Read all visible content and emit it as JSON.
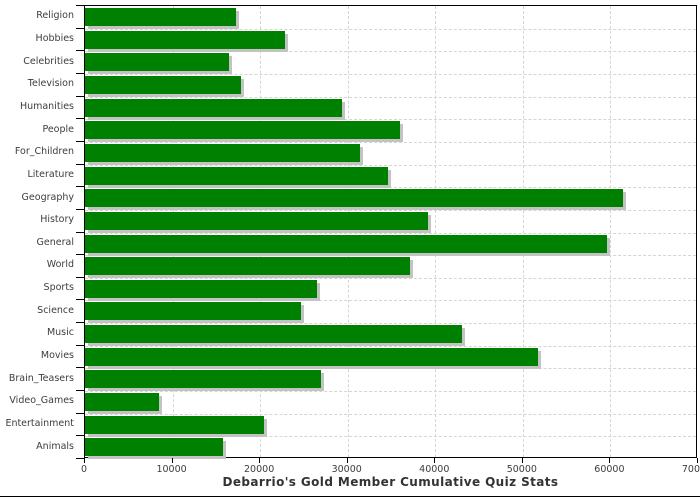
{
  "chart_data": {
    "type": "bar",
    "orientation": "horizontal",
    "title": "Debarrio's Gold Member Cumulative Quiz Stats",
    "xlabel": "",
    "ylabel": "",
    "categories": [
      "Religion",
      "Hobbies",
      "Celebrities",
      "Television",
      "Humanities",
      "People",
      "For_Children",
      "Literature",
      "Geography",
      "History",
      "General",
      "World",
      "Sports",
      "Science",
      "Music",
      "Movies",
      "Brain_Teasers",
      "Video_Games",
      "Entertainment",
      "Animals"
    ],
    "values": [
      17300,
      22800,
      16400,
      17800,
      29400,
      36000,
      31400,
      34600,
      61400,
      39200,
      59600,
      37100,
      26500,
      24700,
      43100,
      51700,
      27000,
      8400,
      20400,
      15800
    ],
    "xlim": [
      0,
      70000
    ],
    "xticks": [
      0,
      10000,
      20000,
      30000,
      40000,
      50000,
      60000,
      70000
    ],
    "xtick_labels": [
      "0",
      "10000",
      "20000",
      "30000",
      "40000",
      "50000",
      "60000",
      "70000"
    ],
    "grid": "dashed vertical lines every 10000, dashed horizontal lines between categories",
    "legend": "none",
    "bar_color": "#008000",
    "shadow_color": "#c3c3c3",
    "grid_color": "#d5d5d5",
    "axis_color": "#000000",
    "label_color": "#3d3d3d",
    "title_color": "#333333"
  }
}
